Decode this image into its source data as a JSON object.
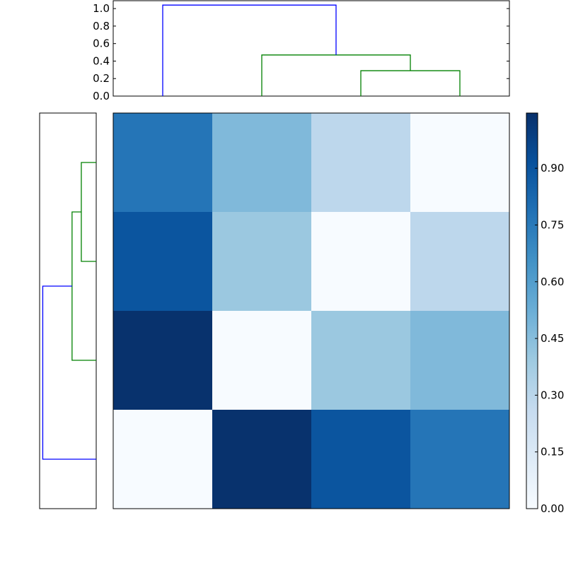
{
  "chart_data": [
    {
      "type": "dendrogram",
      "orientation": "top",
      "leaves": 4,
      "links": [
        {
          "left": 2,
          "right": 3,
          "height": 0.29,
          "color": "#008000"
        },
        {
          "left": 1,
          "right": "2+3",
          "height": 0.47,
          "color": "#008000"
        },
        {
          "left": 0,
          "right": "1+2+3",
          "height": 1.04,
          "color": "#0000ff"
        }
      ],
      "yticks": [
        "0.0",
        "0.2",
        "0.4",
        "0.6",
        "0.8",
        "1.0"
      ],
      "ylim": [
        0,
        1.09
      ]
    },
    {
      "type": "dendrogram",
      "orientation": "right",
      "leaves": 4,
      "links": [
        {
          "left": 0,
          "right": 1,
          "height": 0.29,
          "color": "#008000"
        },
        {
          "left": "0+1",
          "right": 2,
          "height": 0.47,
          "color": "#008000"
        },
        {
          "left": "0+1+2",
          "right": 3,
          "height": 1.04,
          "color": "#0000ff"
        }
      ]
    },
    {
      "type": "heatmap",
      "colormap": "Blues",
      "values": [
        [
          0.77,
          0.47,
          0.29,
          0.0
        ],
        [
          0.9,
          0.4,
          0.0,
          0.29
        ],
        [
          1.04,
          0.0,
          0.4,
          0.47
        ],
        [
          0.0,
          1.04,
          0.9,
          0.77
        ]
      ],
      "vmin": 0,
      "vmax": 1.046,
      "colorbar_ticks": [
        "0.00",
        "0.15",
        "0.30",
        "0.45",
        "0.60",
        "0.75",
        "0.90"
      ]
    }
  ]
}
